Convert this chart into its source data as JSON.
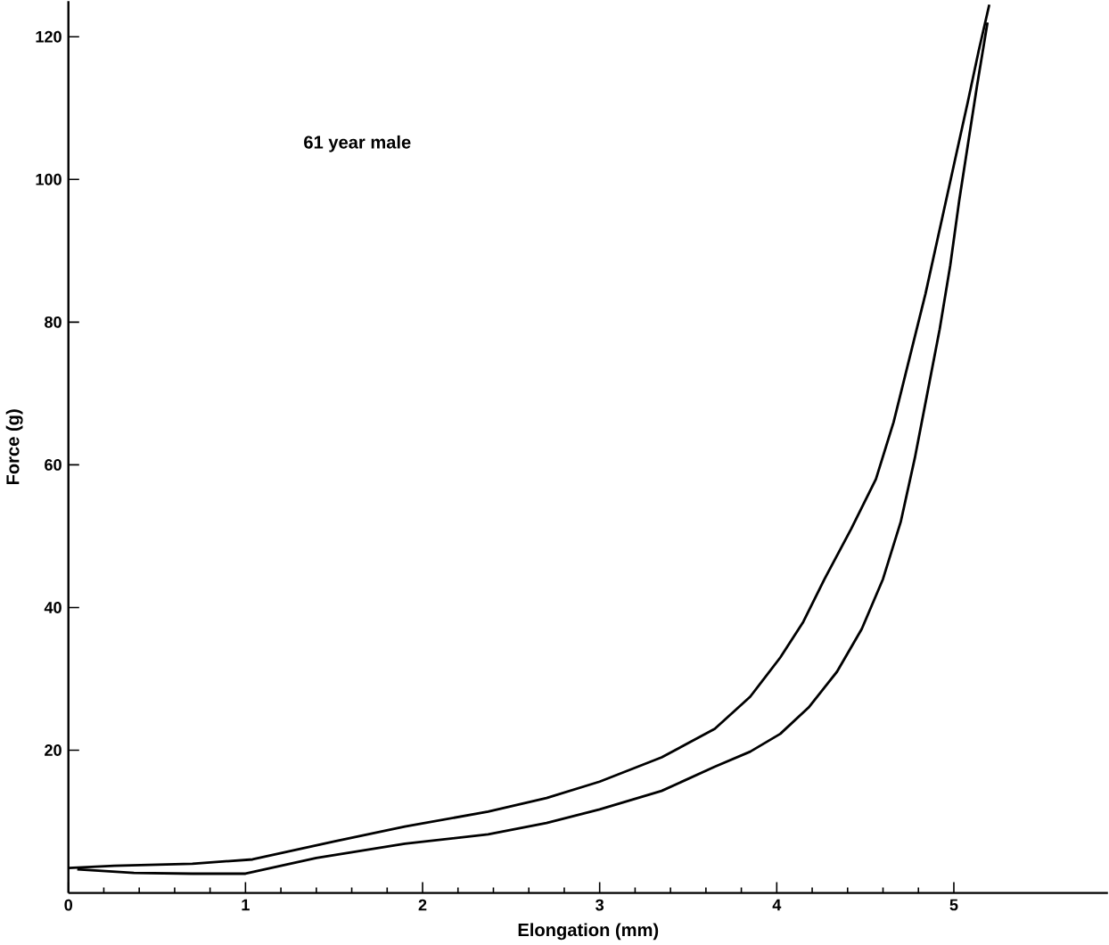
{
  "chart_data": {
    "type": "line",
    "xlabel": "Elongation (mm)",
    "ylabel": "Force (g)",
    "annotations": [
      "61 year male"
    ],
    "xlim": [
      0,
      5.87
    ],
    "ylim": [
      0,
      125
    ],
    "xticks": [
      0,
      1,
      2,
      3,
      4,
      5
    ],
    "yticks": [
      20,
      40,
      60,
      80,
      100,
      120
    ],
    "grid": false,
    "marker": "none",
    "line_style": "solid",
    "series": [
      {
        "color": "#000000",
        "x": [
          0,
          0.26,
          0.7,
          1.04,
          1.5,
          1.9,
          2.37,
          2.7,
          3.0,
          3.35,
          3.65,
          3.85,
          4.02,
          4.15,
          4.27,
          4.42,
          4.56,
          4.66,
          4.75,
          4.84,
          4.92,
          5.0,
          5.08,
          5.14,
          5.2
        ],
        "values": [
          3.5,
          3.8,
          4.1,
          4.7,
          7.2,
          9.3,
          11.4,
          13.3,
          15.6,
          19,
          23,
          27.5,
          33,
          38,
          44,
          51,
          58,
          66,
          75,
          84,
          93,
          102,
          111,
          118,
          124.5
        ]
      },
      {
        "color": "#000000",
        "x": [
          0.05,
          0.37,
          0.7,
          1.0,
          1.4,
          1.9,
          2.37,
          2.7,
          3.0,
          3.35,
          3.65,
          3.85,
          4.02,
          4.18,
          4.34,
          4.48,
          4.6,
          4.7,
          4.78,
          4.85,
          4.92,
          4.98,
          5.03,
          5.08,
          5.13,
          5.17,
          5.19
        ],
        "values": [
          3.3,
          2.8,
          2.7,
          2.7,
          4.9,
          6.9,
          8.2,
          9.8,
          11.7,
          14.3,
          17.7,
          19.8,
          22.3,
          26,
          31,
          37,
          44,
          52,
          61,
          70,
          79,
          88,
          97,
          105,
          113,
          119,
          122
        ]
      }
    ]
  }
}
